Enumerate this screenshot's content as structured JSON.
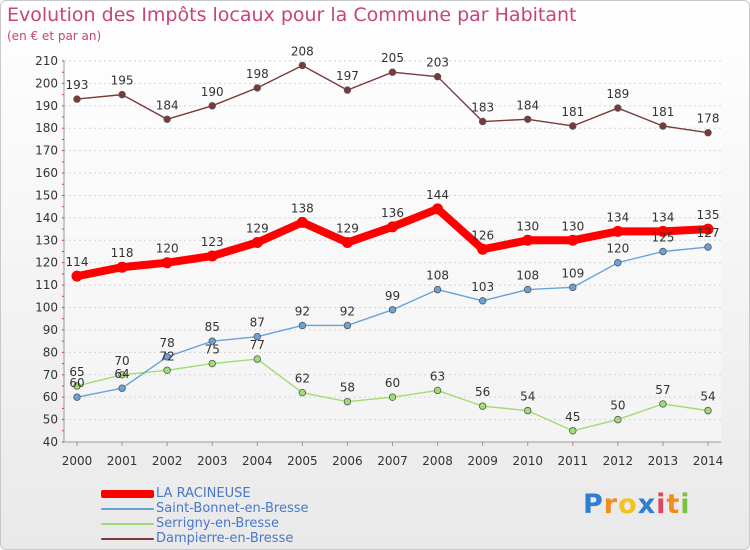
{
  "header": {
    "title": "Evolution des Impôts locaux pour la Commune par Habitant",
    "subtitle": "(en € et par an)"
  },
  "chart_data": {
    "type": "line",
    "title": "Evolution des Impôts locaux pour la Commune par Habitant",
    "subtitle": "(en € et par an)",
    "x": [
      "2000",
      "2001",
      "2002",
      "2003",
      "2004",
      "2005",
      "2006",
      "2007",
      "2008",
      "2009",
      "2010",
      "2011",
      "2012",
      "2013",
      "2014"
    ],
    "ylim": [
      40,
      210
    ],
    "yticks": [
      40,
      50,
      60,
      70,
      80,
      90,
      100,
      110,
      120,
      130,
      140,
      150,
      160,
      170,
      180,
      190,
      200,
      210
    ],
    "grid": true,
    "legend_position": "bottom-left",
    "series": [
      {
        "name": "LA RACINEUSE",
        "color": "#ff0000",
        "values": [
          114,
          118,
          120,
          123,
          129,
          138,
          129,
          136,
          144,
          126,
          130,
          130,
          134,
          134,
          135
        ]
      },
      {
        "name": "Saint-Bonnet-en-Bresse",
        "color": "#6aa2d8",
        "values": [
          60,
          64,
          78,
          85,
          87,
          92,
          92,
          99,
          108,
          103,
          108,
          109,
          120,
          125,
          127
        ]
      },
      {
        "name": "Serrigny-en-Bresse",
        "color": "#a0dc74",
        "values": [
          65,
          70,
          72,
          75,
          77,
          62,
          58,
          60,
          63,
          56,
          54,
          45,
          50,
          57,
          54
        ]
      },
      {
        "name": "Dampierre-en-Bresse",
        "color": "#7a3a3a",
        "values": [
          193,
          195,
          184,
          190,
          198,
          208,
          197,
          205,
          203,
          183,
          184,
          181,
          189,
          181,
          178
        ]
      }
    ]
  },
  "logo": {
    "letters": [
      "P",
      "r",
      "o",
      "x",
      "i",
      "t",
      "i"
    ],
    "colors": [
      "#2f7fd0",
      "#f28c1e",
      "#f2c21e",
      "#2f7fd0",
      "#e0455a",
      "#f28c1e",
      "#7ac142"
    ]
  }
}
